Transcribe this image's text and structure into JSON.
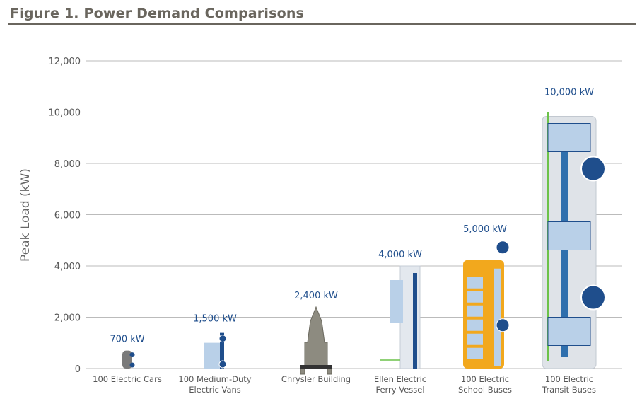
{
  "chart_data": {
    "type": "bar",
    "style": "pictorial",
    "title": "Figure 1. Power Demand Comparisons",
    "xlabel": "",
    "ylabel": "Peak Load (kW)",
    "ylim": [
      0,
      12000
    ],
    "yticks": [
      0,
      2000,
      4000,
      6000,
      8000,
      10000,
      12000
    ],
    "ytick_labels": [
      "0",
      "2,000",
      "4,000",
      "6,000",
      "8,000",
      "10,000",
      "12,000"
    ],
    "grid": true,
    "categories": [
      [
        "100 Electric Cars"
      ],
      [
        "100 Medium-Duty",
        "Electric Vans"
      ],
      [
        "Chrysler Building"
      ],
      [
        "Ellen Electric",
        "Ferry Vessel"
      ],
      [
        "100 Electric",
        "School Buses"
      ],
      [
        "100 Electric",
        "Transit Buses"
      ]
    ],
    "values": [
      700,
      1500,
      2400,
      4000,
      5000,
      10000
    ],
    "data_labels": [
      "700 kW",
      "1,500 kW",
      "2,400 kW",
      "4,000 kW",
      "5,000 kW",
      "10,000 kW"
    ],
    "icons": [
      "car-icon",
      "van-icon",
      "building-icon",
      "ferry-icon",
      "school-bus-icon",
      "transit-bus-icon"
    ],
    "colors": {
      "label": "#1f4e8c",
      "bus_yellow": "#f2a81d",
      "accent_green": "#6cc24a",
      "light_blue": "#b9d0e8",
      "navy": "#1f4e8c"
    }
  }
}
